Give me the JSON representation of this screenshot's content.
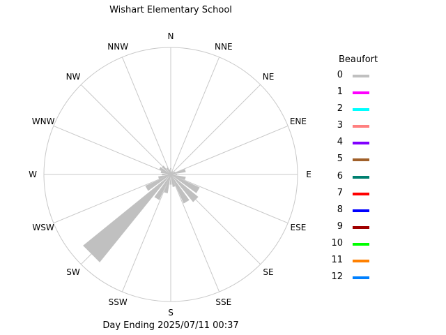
{
  "title": "Wishart Elementary School",
  "footer": "Day Ending 2025/07/11 00:37",
  "legend": {
    "title": "Beaufort",
    "items": [
      {
        "label": "0",
        "color": "#c0c0c0"
      },
      {
        "label": "1",
        "color": "#ff00ff"
      },
      {
        "label": "2",
        "color": "#00ffff"
      },
      {
        "label": "3",
        "color": "#ff8080"
      },
      {
        "label": "4",
        "color": "#8000ff"
      },
      {
        "label": "5",
        "color": "#a0602a"
      },
      {
        "label": "6",
        "color": "#008070"
      },
      {
        "label": "7",
        "color": "#ff0000"
      },
      {
        "label": "8",
        "color": "#0000ff"
      },
      {
        "label": "9",
        "color": "#a00000"
      },
      {
        "label": "10",
        "color": "#00ff00"
      },
      {
        "label": "11",
        "color": "#ff8000"
      },
      {
        "label": "12",
        "color": "#0080ff"
      }
    ]
  },
  "chart_data": {
    "type": "wind-rose",
    "title": "Wishart Elementary School",
    "directions": [
      "N",
      "NNE",
      "NE",
      "ENE",
      "E",
      "ESE",
      "SE",
      "SSE",
      "S",
      "SSW",
      "SW",
      "WSW",
      "W",
      "WNW",
      "NW",
      "NNW"
    ],
    "grid": true,
    "legend_position": "right",
    "series": [
      {
        "name": "0",
        "color": "#c0c0c0",
        "points": [
          {
            "bearing": 0,
            "value": 0.05
          },
          {
            "bearing": 15,
            "value": 0.02
          },
          {
            "bearing": 30,
            "value": 0.03
          },
          {
            "bearing": 45,
            "value": 0.03
          },
          {
            "bearing": 60,
            "value": 0.04
          },
          {
            "bearing": 75,
            "value": 0.12
          },
          {
            "bearing": 90,
            "value": 0.05
          },
          {
            "bearing": 105,
            "value": 0.12
          },
          {
            "bearing": 120,
            "value": 0.25
          },
          {
            "bearing": 135,
            "value": 0.28
          },
          {
            "bearing": 150,
            "value": 0.25
          },
          {
            "bearing": 165,
            "value": 0.1
          },
          {
            "bearing": 180,
            "value": 0.08
          },
          {
            "bearing": 195,
            "value": 0.15
          },
          {
            "bearing": 210,
            "value": 0.22
          },
          {
            "bearing": 225,
            "value": 0.89
          },
          {
            "bearing": 240,
            "value": 0.22
          },
          {
            "bearing": 255,
            "value": 0.1
          },
          {
            "bearing": 270,
            "value": 0.07
          },
          {
            "bearing": 285,
            "value": 0.08
          },
          {
            "bearing": 300,
            "value": 0.1
          },
          {
            "bearing": 315,
            "value": 0.09
          },
          {
            "bearing": 330,
            "value": 0.06
          },
          {
            "bearing": 345,
            "value": 0.04
          }
        ]
      }
    ]
  }
}
